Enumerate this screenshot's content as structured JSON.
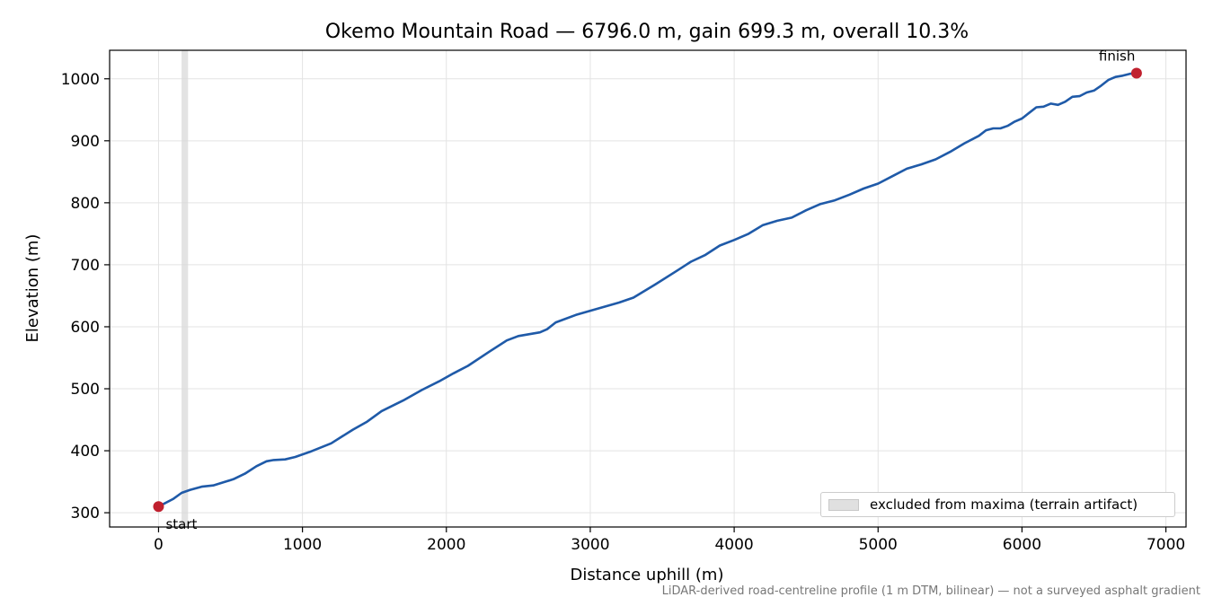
{
  "chart_data": {
    "type": "line",
    "title": "Okemo Mountain Road — 6796.0 m, gain 699.3 m, overall 10.3%",
    "xlabel": "Distance uphill (m)",
    "ylabel": "Elevation (m)",
    "xlim": [
      -340,
      7140
    ],
    "ylim": [
      277,
      1046
    ],
    "xticks": [
      0,
      1000,
      2000,
      3000,
      4000,
      5000,
      6000,
      7000
    ],
    "yticks": [
      300,
      400,
      500,
      600,
      700,
      800,
      900,
      1000
    ],
    "grid": true,
    "legend_position": "lower-right",
    "series": [
      {
        "color": "#1f5aa8",
        "x": [
          0,
          100,
          160,
          220,
          300,
          380,
          450,
          520,
          600,
          680,
          750,
          800,
          880,
          950,
          1050,
          1200,
          1350,
          1450,
          1550,
          1700,
          1830,
          1950,
          2050,
          2150,
          2300,
          2420,
          2500,
          2650,
          2700,
          2760,
          2900,
          3050,
          3200,
          3300,
          3450,
          3600,
          3700,
          3800,
          3900,
          4000,
          4100,
          4200,
          4300,
          4400,
          4500,
          4600,
          4700,
          4800,
          4900,
          5000,
          5100,
          5200,
          5300,
          5400,
          5500,
          5600,
          5700,
          5750,
          5800,
          5850,
          5900,
          5950,
          6000,
          6050,
          6100,
          6150,
          6200,
          6250,
          6300,
          6350,
          6400,
          6450,
          6500,
          6550,
          6600,
          6650,
          6700,
          6750,
          6796
        ],
        "y": [
          310,
          322,
          332,
          337,
          342,
          344,
          349,
          354,
          363,
          375,
          383,
          385,
          386,
          390,
          398,
          412,
          434,
          447,
          464,
          481,
          498,
          512,
          525,
          537,
          560,
          578,
          585,
          591,
          596,
          607,
          619,
          629,
          639,
          647,
          668,
          690,
          705,
          716,
          731,
          740,
          750,
          764,
          771,
          776,
          788,
          798,
          804,
          813,
          823,
          831,
          843,
          855,
          862,
          870,
          882,
          896,
          908,
          917,
          920,
          920,
          924,
          931,
          936,
          945,
          954,
          955,
          960,
          958,
          963,
          971,
          972,
          978,
          981,
          989,
          998,
          1003,
          1005,
          1008,
          1009
        ]
      }
    ],
    "markers": [
      {
        "label": "start",
        "x": 0,
        "y": 310,
        "color": "#c0202e"
      },
      {
        "label": "finish",
        "x": 6796,
        "y": 1009,
        "color": "#c0202e"
      }
    ],
    "excluded_band": {
      "x_from": 160,
      "x_to": 205,
      "label": "excluded from maxima (terrain artifact)"
    }
  },
  "footnote": "LiDAR-derived road-centreline profile (1 m DTM, bilinear) — not a surveyed asphalt gradient"
}
